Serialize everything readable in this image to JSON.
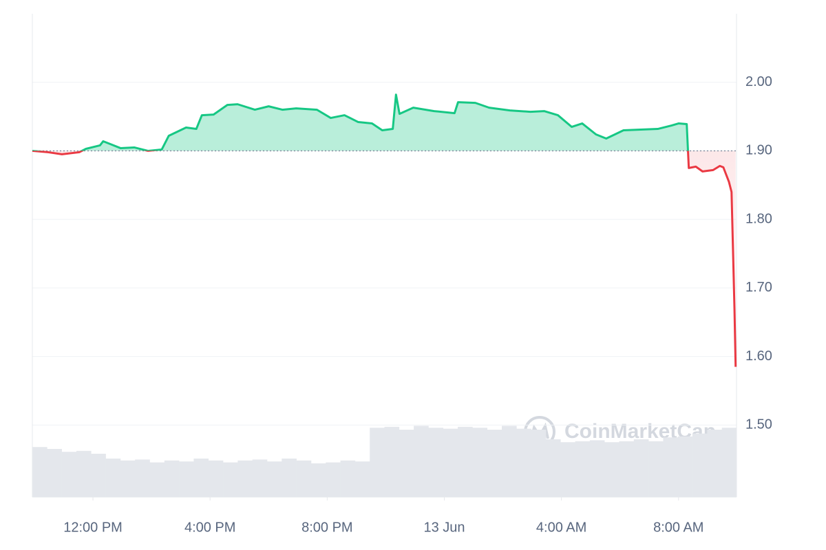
{
  "chart_data": {
    "type": "line",
    "watermark": "CoinMarketCap",
    "baseline": 1.9,
    "x": [
      9.93,
      10.47,
      10.94,
      11.53,
      11.76,
      12.24,
      12.35,
      12.59,
      12.94,
      13.41,
      13.88,
      14.35,
      14.59,
      15.18,
      15.53,
      15.72,
      16.12,
      16.59,
      16.94,
      17.53,
      18.0,
      18.47,
      18.94,
      19.65,
      20.12,
      20.59,
      21.06,
      21.53,
      21.88,
      22.24,
      22.35,
      22.47,
      22.94,
      23.65,
      24.35,
      24.47,
      25.06,
      25.53,
      26.24,
      26.94,
      27.41,
      27.88,
      28.35,
      28.71,
      29.18,
      29.53,
      30.12,
      30.71,
      31.29,
      31.76,
      32.0,
      32.28,
      32.35,
      32.59,
      32.82,
      33.18,
      33.41,
      33.53,
      33.72,
      33.81,
      33.91,
      33.95
    ],
    "series": [
      {
        "name": "Price",
        "color_up": "#16c784",
        "color_down": "#ea3943",
        "values": [
          1.9,
          1.898,
          1.895,
          1.898,
          1.903,
          1.908,
          1.914,
          1.91,
          1.904,
          1.905,
          1.9,
          1.902,
          1.922,
          1.934,
          1.932,
          1.952,
          1.953,
          1.967,
          1.968,
          1.96,
          1.965,
          1.96,
          1.962,
          1.96,
          1.948,
          1.952,
          1.942,
          1.94,
          1.93,
          1.932,
          1.982,
          1.954,
          1.963,
          1.958,
          1.955,
          1.971,
          1.97,
          1.963,
          1.959,
          1.957,
          1.958,
          1.952,
          1.935,
          1.94,
          1.924,
          1.918,
          1.93,
          1.931,
          1.932,
          1.937,
          1.94,
          1.939,
          1.875,
          1.877,
          1.87,
          1.872,
          1.878,
          1.876,
          1.855,
          1.84,
          1.67,
          1.585
        ]
      }
    ],
    "volume": {
      "color": "#e4e7ec",
      "ylim": [
        0,
        100
      ],
      "values": [
        52,
        50,
        47,
        48,
        45,
        40,
        38,
        39,
        36,
        38,
        37,
        40,
        38,
        36,
        38,
        39,
        37,
        40,
        38,
        35,
        36,
        38,
        37,
        72,
        73,
        70,
        74,
        72,
        71,
        73,
        72,
        70,
        74,
        71,
        70,
        60,
        57,
        58,
        59,
        57,
        58,
        60,
        58,
        62,
        63,
        66,
        70,
        72
      ]
    },
    "xlim": [
      9.93,
      33.98
    ],
    "xticks": [
      {
        "value": 12,
        "label": "12:00 PM"
      },
      {
        "value": 16,
        "label": "4:00 PM"
      },
      {
        "value": 20,
        "label": "8:00 PM"
      },
      {
        "value": 24,
        "label": "13 Jun"
      },
      {
        "value": 28,
        "label": "4:00 AM"
      },
      {
        "value": 32,
        "label": "8:00 AM"
      }
    ],
    "ylim": [
      1.395,
      2.1
    ],
    "yticks": [
      {
        "value": 1.5,
        "label": "1.50"
      },
      {
        "value": 1.6,
        "label": "1.60"
      },
      {
        "value": 1.7,
        "label": "1.70"
      },
      {
        "value": 1.8,
        "label": "1.80"
      },
      {
        "value": 1.9,
        "label": "1.90"
      },
      {
        "value": 2.0,
        "label": "2.00"
      }
    ],
    "grid": true
  }
}
